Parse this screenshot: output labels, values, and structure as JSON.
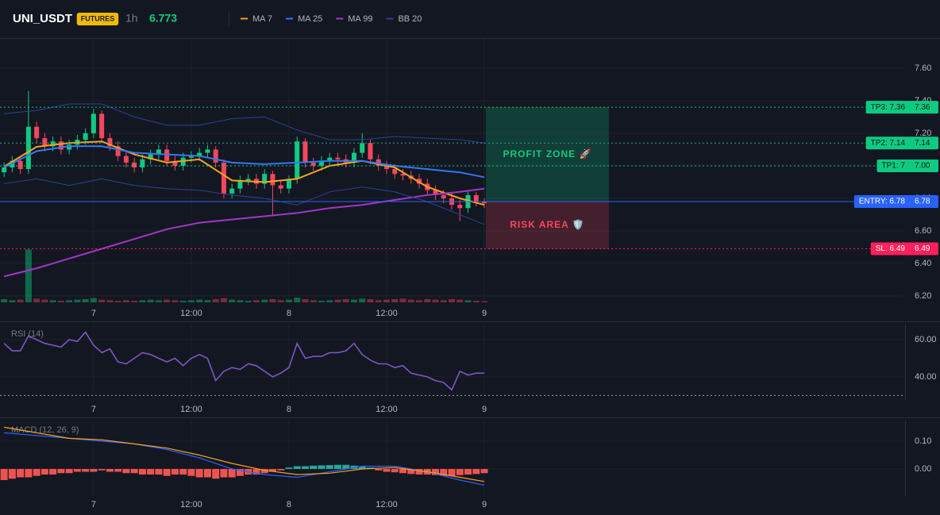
{
  "header": {
    "symbol": "UNI_USDT",
    "badge": "FUTURES",
    "interval": "1h",
    "price": 6.773
  },
  "chart_data": [
    {
      "type": "candlestick",
      "x": [
        -11,
        -10,
        -9,
        -8,
        -7,
        -6,
        -5,
        -4,
        -3,
        -2,
        -1,
        0,
        1,
        2,
        3,
        4,
        5,
        6,
        7,
        8,
        9,
        10,
        11,
        12,
        13,
        14,
        15,
        16,
        17,
        18,
        19,
        20,
        21,
        22,
        23,
        24,
        25,
        26,
        27,
        28,
        29,
        30,
        31,
        32,
        33,
        34,
        35,
        36,
        37,
        38,
        39,
        40,
        41,
        42,
        43,
        44,
        45,
        46,
        47,
        48
      ],
      "open": [
        6.96,
        6.99,
        7.03,
        6.98,
        7.24,
        7.17,
        7.12,
        7.15,
        7.1,
        7.13,
        7.16,
        7.2,
        7.32,
        7.17,
        7.12,
        7.06,
        7.02,
        6.99,
        7.04,
        7.07,
        7.1,
        7.03,
        7.0,
        7.05,
        7.06,
        7.08,
        7.1,
        7.02,
        6.83,
        6.86,
        6.91,
        6.92,
        6.89,
        6.95,
        6.88,
        6.86,
        6.92,
        7.15,
        7.02,
        7.0,
        7.03,
        7.05,
        7.04,
        7.02,
        7.08,
        7.14,
        7.04,
        7.0,
        6.98,
        6.95,
        6.94,
        6.92,
        6.89,
        6.85,
        6.82,
        6.8,
        6.76,
        6.74,
        6.82,
        6.78
      ],
      "high": [
        7.02,
        7.06,
        7.06,
        7.46,
        7.27,
        7.2,
        7.18,
        7.18,
        7.16,
        7.19,
        7.23,
        7.35,
        7.34,
        7.2,
        7.15,
        7.09,
        7.05,
        7.07,
        7.1,
        7.13,
        7.13,
        7.06,
        7.08,
        7.09,
        7.11,
        7.13,
        7.12,
        7.04,
        6.89,
        6.94,
        6.95,
        6.95,
        6.98,
        6.97,
        6.91,
        6.94,
        7.18,
        7.17,
        7.05,
        7.06,
        7.08,
        7.08,
        7.07,
        7.11,
        7.2,
        7.16,
        7.07,
        7.03,
        7.01,
        6.98,
        6.97,
        6.95,
        6.92,
        6.88,
        6.85,
        6.83,
        6.79,
        6.84,
        6.84,
        6.8
      ],
      "low": [
        6.93,
        6.96,
        6.95,
        6.95,
        7.14,
        7.09,
        7.09,
        7.07,
        7.07,
        7.1,
        7.13,
        7.17,
        7.14,
        7.09,
        7.03,
        6.99,
        6.96,
        6.96,
        7.01,
        7.04,
        7.0,
        6.97,
        6.97,
        7.02,
        7.03,
        7.05,
        6.99,
        6.8,
        6.8,
        6.83,
        6.88,
        6.86,
        6.86,
        6.7,
        6.83,
        6.83,
        6.89,
        6.99,
        6.97,
        6.97,
        7.0,
        7.01,
        6.99,
        6.99,
        7.05,
        7.01,
        6.97,
        6.95,
        6.92,
        6.91,
        6.89,
        6.86,
        6.82,
        6.79,
        6.77,
        6.73,
        6.66,
        6.71,
        6.75,
        6.74
      ],
      "close": [
        6.99,
        7.03,
        6.98,
        7.24,
        7.17,
        7.12,
        7.15,
        7.1,
        7.13,
        7.16,
        7.2,
        7.32,
        7.17,
        7.12,
        7.06,
        7.02,
        6.99,
        7.04,
        7.07,
        7.1,
        7.03,
        7.0,
        7.05,
        7.06,
        7.08,
        7.1,
        7.02,
        6.83,
        6.86,
        6.91,
        6.92,
        6.89,
        6.95,
        6.88,
        6.86,
        6.92,
        7.15,
        7.02,
        7.0,
        7.03,
        7.05,
        7.04,
        7.02,
        7.08,
        7.14,
        7.04,
        7.0,
        6.98,
        6.95,
        6.94,
        6.92,
        6.89,
        6.85,
        6.82,
        6.8,
        6.76,
        6.74,
        6.82,
        6.78,
        6.77
      ],
      "volume": [
        6,
        4,
        5,
        100,
        7,
        5,
        4,
        3,
        4,
        5,
        6,
        8,
        5,
        4,
        3,
        4,
        3,
        4,
        5,
        4,
        5,
        4,
        3,
        4,
        5,
        4,
        6,
        8,
        5,
        4,
        3,
        4,
        5,
        6,
        4,
        5,
        9,
        6,
        4,
        3,
        4,
        5,
        6,
        5,
        7,
        6,
        4,
        5,
        6,
        7,
        5,
        4,
        6,
        5,
        4,
        6,
        5,
        4,
        3,
        2
      ],
      "vlim": [
        0,
        150
      ],
      "up_color": "#0ecb81",
      "down_color": "#f6465d",
      "series": [
        {
          "name": "MA 7",
          "color": "#f7a21b",
          "x": [
            -11,
            -7,
            -3,
            1,
            5,
            9,
            13,
            17,
            21,
            25,
            29,
            33,
            37,
            41,
            45,
            48
          ],
          "values": [
            6.995,
            7.117,
            7.14,
            7.15,
            7.07,
            7.02,
            7.04,
            6.91,
            6.9,
            6.92,
            7.0,
            7.03,
            6.99,
            6.87,
            6.8,
            6.76
          ]
        },
        {
          "name": "MA 25",
          "color": "#3179f5",
          "x": [
            -11,
            -7,
            -3,
            1,
            5,
            9,
            13,
            17,
            21,
            25,
            29,
            33,
            37,
            41,
            45,
            48
          ],
          "values": [
            6.99,
            7.09,
            7.12,
            7.12,
            7.08,
            7.07,
            7.06,
            7.02,
            7.01,
            7.02,
            7.03,
            7.03,
            7.0,
            6.98,
            6.96,
            6.93
          ]
        },
        {
          "name": "MA 99",
          "color": "#a335c8",
          "x": [
            -11,
            -7,
            -3,
            1,
            5,
            9,
            13,
            17,
            21,
            25,
            29,
            33,
            37,
            41,
            45,
            48
          ],
          "values": [
            6.32,
            6.37,
            6.43,
            6.49,
            6.55,
            6.61,
            6.65,
            6.67,
            6.69,
            6.71,
            6.74,
            6.76,
            6.79,
            6.82,
            6.84,
            6.86
          ]
        },
        {
          "name": "BB 20",
          "color": "#2b4393",
          "x": [
            -11,
            -7,
            -3,
            1,
            5,
            9,
            13,
            17,
            21,
            25,
            29,
            33,
            37,
            41,
            45,
            48
          ],
          "upper": [
            7.32,
            7.34,
            7.38,
            7.38,
            7.3,
            7.25,
            7.25,
            7.29,
            7.3,
            7.22,
            7.16,
            7.16,
            7.18,
            7.17,
            7.16,
            7.14
          ],
          "lower": [
            6.89,
            6.92,
            6.88,
            6.92,
            6.88,
            6.86,
            6.85,
            6.82,
            6.8,
            6.76,
            6.84,
            6.87,
            6.84,
            6.78,
            6.7,
            6.64
          ]
        }
      ],
      "levels": [
        {
          "label": "TP3: 7.36",
          "value": 7.36,
          "color": "#0ecb81",
          "text_color": "#0b1a12",
          "style": "dotted"
        },
        {
          "label": "TP2: 7.14",
          "value": 7.14,
          "color": "#0ecb81",
          "line_color": "#26a69a",
          "text_color": "#0b1a12",
          "style": "dotted"
        },
        {
          "label": "TP1: 7",
          "value": 7,
          "value_label": "7.00",
          "color": "#0ecb81",
          "text_color": "#0b1a12",
          "style": "dotted"
        },
        {
          "label": "ENTRY: 6.78",
          "value": 6.78,
          "color": "#2962ff",
          "text_color": "#ffffff",
          "style": "solid"
        },
        {
          "label": "SL: 6.49",
          "value": 6.49,
          "color": "#ff1f5a",
          "text_color": "#ffffff",
          "style": "dotted"
        }
      ],
      "zones": [
        {
          "label": "PROFIT ZONE 🚀",
          "x": [
            48.2,
            63.3
          ],
          "range": [
            6.78,
            7.36
          ],
          "color": "#0ecb81"
        },
        {
          "label": "RISK AREA 🛡️",
          "x": [
            48.2,
            63.3
          ],
          "range": [
            6.49,
            6.78
          ],
          "color": "#f6465d"
        }
      ],
      "xlim": [
        -11.5,
        99.5
      ],
      "xticks": [
        {
          "value": 0,
          "label": "7"
        },
        {
          "value": 12,
          "label": "12:00"
        },
        {
          "value": 24,
          "label": "8"
        },
        {
          "value": 36,
          "label": "12:00"
        },
        {
          "value": 48,
          "label": "9"
        }
      ],
      "ylim": [
        6.156,
        7.785
      ],
      "yticks": [
        {
          "value": 6.2,
          "label": "6.20"
        },
        {
          "value": 6.4,
          "label": "6.40"
        },
        {
          "value": 6.6,
          "label": "6.60"
        },
        {
          "value": 6.8,
          "label": "6.80"
        },
        {
          "value": 7.0,
          "label": "7.00"
        },
        {
          "value": 7.2,
          "label": "7.20"
        },
        {
          "value": 7.4,
          "label": "7.40"
        },
        {
          "value": 7.6,
          "label": "7.60"
        }
      ],
      "grid": true
    },
    {
      "type": "line",
      "title": "RSI (14)",
      "color": "#7e57c2",
      "x": [
        -11,
        -10,
        -9,
        -8,
        -7,
        -6,
        -5,
        -4,
        -3,
        -2,
        -1,
        0,
        1,
        2,
        3,
        4,
        5,
        6,
        7,
        8,
        9,
        10,
        11,
        12,
        13,
        14,
        15,
        16,
        17,
        18,
        19,
        20,
        21,
        22,
        23,
        24,
        25,
        26,
        27,
        28,
        29,
        30,
        31,
        32,
        33,
        34,
        35,
        36,
        37,
        38,
        39,
        40,
        41,
        42,
        43,
        44,
        45,
        46,
        47,
        48
      ],
      "values": [
        58,
        54,
        54,
        62,
        60,
        58,
        57,
        56,
        60,
        59,
        64,
        57,
        53,
        55,
        48,
        47,
        50,
        53,
        52,
        50,
        48,
        50,
        46,
        50,
        52,
        50,
        38,
        43,
        45,
        44,
        47,
        46,
        43,
        40,
        42,
        45,
        58,
        50,
        51,
        51,
        53,
        53,
        54,
        58,
        52,
        49,
        47,
        47,
        45,
        46,
        42,
        41,
        40,
        38,
        37,
        33,
        43,
        41,
        42,
        42
      ],
      "levels": [
        30
      ],
      "xlim": [
        -11.5,
        99.5
      ],
      "xticks": [
        {
          "value": 0,
          "label": "7"
        },
        {
          "value": 12,
          "label": "12:00"
        },
        {
          "value": 24,
          "label": "8"
        },
        {
          "value": 36,
          "label": "12:00"
        },
        {
          "value": 48,
          "label": "9"
        }
      ],
      "ylim": [
        27.2,
        68.5
      ],
      "yticks": [
        {
          "value": 40,
          "label": "40.00"
        },
        {
          "value": 60,
          "label": "60.00"
        }
      ],
      "grid": true
    },
    {
      "type": "macd",
      "title": "MACD (12, 26, 9)",
      "x": [
        -11,
        -10,
        -9,
        -8,
        -7,
        -6,
        -5,
        -4,
        -3,
        -2,
        -1,
        0,
        1,
        2,
        3,
        4,
        5,
        6,
        7,
        8,
        9,
        10,
        11,
        12,
        13,
        14,
        15,
        16,
        17,
        18,
        19,
        20,
        21,
        22,
        23,
        24,
        25,
        26,
        27,
        28,
        29,
        30,
        31,
        32,
        33,
        34,
        35,
        36,
        37,
        38,
        39,
        40,
        41,
        42,
        43,
        44,
        45,
        46,
        47,
        48
      ],
      "histogram": [
        -0.04,
        -0.035,
        -0.03,
        -0.03,
        -0.025,
        -0.02,
        -0.02,
        -0.015,
        -0.015,
        -0.01,
        -0.01,
        -0.01,
        -0.005,
        -0.01,
        -0.01,
        -0.015,
        -0.015,
        -0.02,
        -0.02,
        -0.02,
        -0.025,
        -0.02,
        -0.02,
        -0.025,
        -0.03,
        -0.03,
        -0.035,
        -0.03,
        -0.03,
        -0.025,
        -0.02,
        -0.02,
        -0.015,
        -0.01,
        -0.005,
        0.005,
        0.01,
        0.01,
        0.012,
        0.013,
        0.014,
        0.015,
        0.015,
        0.012,
        0.01,
        0.005,
        -0.005,
        -0.01,
        -0.012,
        -0.015,
        -0.018,
        -0.02,
        -0.02,
        -0.022,
        -0.025,
        -0.025,
        -0.022,
        -0.02,
        -0.018,
        -0.015
      ],
      "up_color": "#26a69a",
      "down_color": "#ef5350",
      "series": [
        {
          "color": "#2962ff",
          "x": [
            -11,
            -7,
            -3,
            1,
            5,
            9,
            13,
            17,
            21,
            25,
            29,
            33,
            37,
            41,
            45,
            48
          ],
          "values": [
            0.13,
            0.12,
            0.11,
            0.1,
            0.09,
            0.07,
            0.04,
            0.0,
            -0.02,
            -0.03,
            -0.01,
            0.01,
            0.01,
            -0.01,
            -0.04,
            -0.058
          ]
        },
        {
          "color": "#f7a21b",
          "x": [
            -11,
            -7,
            -3,
            1,
            5,
            9,
            13,
            17,
            21,
            25,
            29,
            33,
            37,
            41,
            45,
            48
          ],
          "values": [
            0.15,
            0.13,
            0.11,
            0.105,
            0.09,
            0.075,
            0.05,
            0.02,
            -0.005,
            -0.02,
            -0.015,
            0.0,
            0.005,
            -0.01,
            -0.03,
            -0.045
          ]
        }
      ],
      "xlim": [
        -11.5,
        99.5
      ],
      "xticks": [
        {
          "value": 0,
          "label": "7"
        },
        {
          "value": 12,
          "label": "12:00"
        },
        {
          "value": 24,
          "label": "8"
        },
        {
          "value": 36,
          "label": "12:00"
        },
        {
          "value": 48,
          "label": "9"
        }
      ],
      "ylim": [
        -0.097,
        0.174
      ],
      "yticks": [
        {
          "value": 0,
          "label": "0.00"
        },
        {
          "value": 0.1,
          "label": "0.10"
        }
      ],
      "grid": true
    }
  ]
}
